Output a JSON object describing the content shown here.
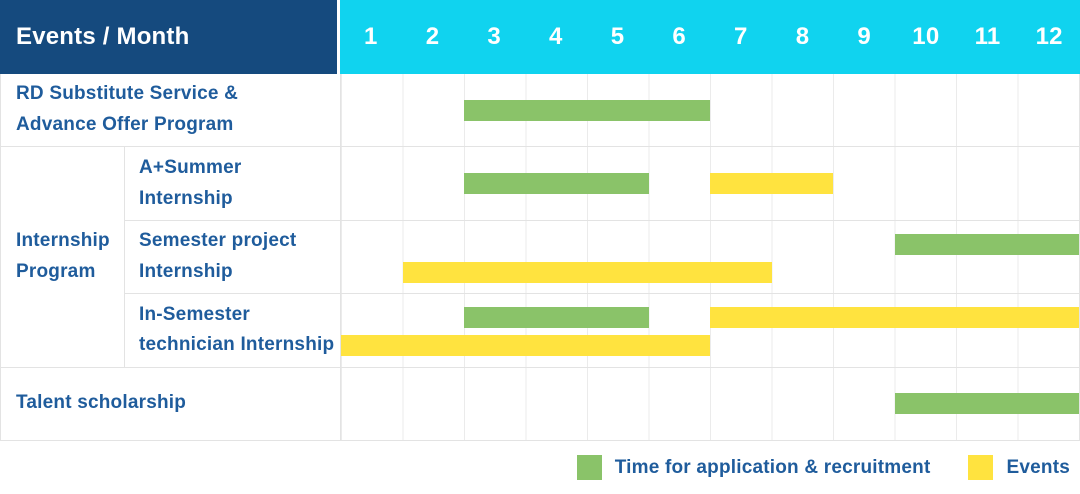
{
  "theme": {
    "navy": "#154A7E",
    "cyan": "#10D3EF",
    "blue": "#1F5C9C",
    "green": "#8AC369",
    "yellow": "#FFE33F",
    "grid": "#EBEBEB",
    "grid-strong": "#E3E3E3"
  },
  "header": {
    "corner": "Events / Month",
    "months": [
      "1",
      "2",
      "3",
      "4",
      "5",
      "6",
      "7",
      "8",
      "9",
      "10",
      "11",
      "12"
    ]
  },
  "chart_data": {
    "type": "gantt",
    "x_axis": {
      "label": "Month",
      "range": [
        1,
        12
      ]
    },
    "groups": [
      {
        "label": "Internship\nProgram",
        "row_indexes": [
          1,
          2,
          3
        ]
      }
    ],
    "rows": [
      {
        "label": "RD Substitute Service &\nAdvance Offer Program",
        "bars": [
          {
            "type": "application",
            "start": 3,
            "end": 6,
            "line": "center"
          }
        ]
      },
      {
        "label": "A+Summer\nInternship",
        "group": "Internship Program",
        "bars": [
          {
            "type": "application",
            "start": 3,
            "end": 5,
            "line": "center"
          },
          {
            "type": "event",
            "start": 7,
            "end": 8,
            "line": "center"
          }
        ]
      },
      {
        "label": "Semester project\nInternship",
        "group": "Internship Program",
        "bars": [
          {
            "type": "application",
            "start": 10,
            "end": 12,
            "line": "top"
          },
          {
            "type": "event",
            "start": 2,
            "end": 7,
            "line": "bottom"
          }
        ]
      },
      {
        "label": "In-Semester\ntechnician Internship",
        "group": "Internship Program",
        "bars": [
          {
            "type": "application",
            "start": 3,
            "end": 5,
            "line": "top"
          },
          {
            "type": "event",
            "start": 7,
            "end": 12,
            "line": "top"
          },
          {
            "type": "event",
            "start": 1,
            "end": 6,
            "line": "bottom"
          }
        ]
      },
      {
        "label": "Talent scholarship",
        "bars": [
          {
            "type": "application",
            "start": 10,
            "end": 12,
            "line": "center"
          }
        ]
      }
    ],
    "legend": [
      {
        "type": "application",
        "label": "Time for application & recruitment",
        "color": "#8AC369"
      },
      {
        "type": "event",
        "label": "Events",
        "color": "#FFE33F"
      }
    ]
  }
}
